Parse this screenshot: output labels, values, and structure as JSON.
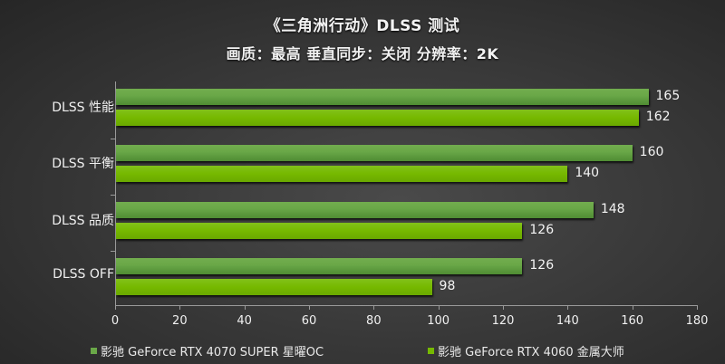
{
  "header": {
    "title": "《三角洲行动》DLSS  测试",
    "subtitle": "画质：最高 垂直同步：关闭 分辨率：2K"
  },
  "legend": [
    {
      "label": "影驰 GeForce RTX 4070 SUPER 星曜OC",
      "color": "#6aa848"
    },
    {
      "label": "影驰 GeForce RTX 4060 金属大师",
      "color": "#76b900"
    }
  ],
  "axis": {
    "x_ticks": [
      "0",
      "20",
      "40",
      "60",
      "80",
      "100",
      "120",
      "140",
      "160",
      "180"
    ]
  },
  "categories": [
    "DLSS 性能",
    "DLSS 平衡",
    "DLSS 品质",
    "DLSS  OFF"
  ],
  "values": {
    "s0": [
      "165",
      "160",
      "148",
      "126"
    ],
    "s1": [
      "162",
      "140",
      "126",
      "98"
    ]
  },
  "chart_data": {
    "type": "bar",
    "orientation": "horizontal",
    "title": "《三角洲行动》DLSS  测试",
    "subtitle": "画质：最高 垂直同步：关闭 分辨率：2K",
    "categories": [
      "DLSS 性能",
      "DLSS 平衡",
      "DLSS 品质",
      "DLSS  OFF"
    ],
    "series": [
      {
        "name": "影驰 GeForce RTX 4070 SUPER 星曜OC",
        "values": [
          165,
          160,
          148,
          126
        ],
        "color": "#6aa848"
      },
      {
        "name": "影驰 GeForce RTX 4060 金属大师",
        "values": [
          162,
          140,
          126,
          98
        ],
        "color": "#76b900"
      }
    ],
    "xlabel": "",
    "ylabel": "",
    "xlim": [
      0,
      180
    ],
    "x_ticks": [
      0,
      20,
      40,
      60,
      80,
      100,
      120,
      140,
      160,
      180
    ],
    "grid": false,
    "legend_position": "bottom",
    "data_labels": true
  }
}
